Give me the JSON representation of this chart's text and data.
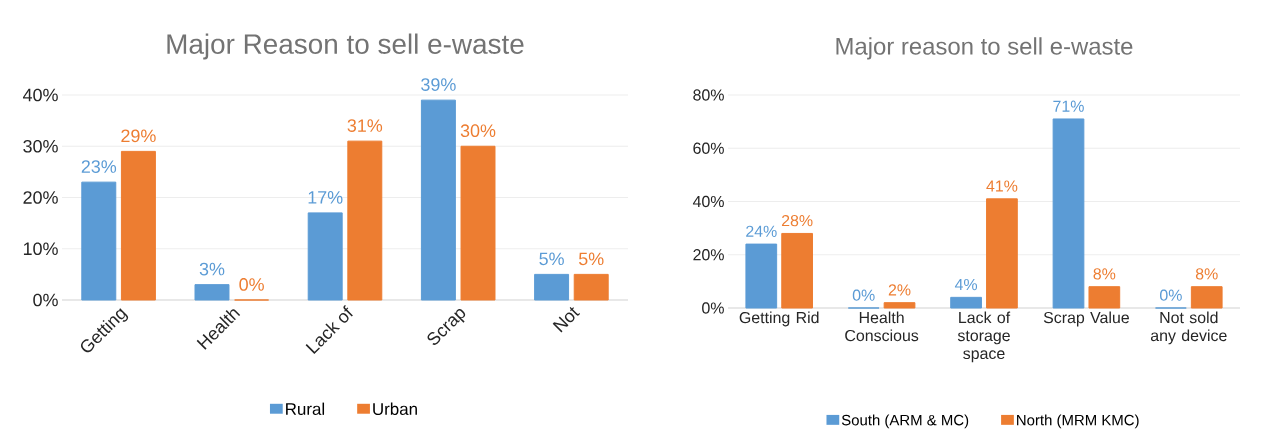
{
  "chart_data": [
    {
      "type": "bar",
      "title": "Major Reason to sell e-waste",
      "categories": [
        "Getting",
        "Health",
        "Lack of",
        "Scrap",
        "Not"
      ],
      "series": [
        {
          "name": "Rural",
          "color": "#5b9bd5",
          "values": [
            23,
            3,
            17,
            39,
            5
          ],
          "value_labels": [
            "23%",
            "3%",
            "17%",
            "39%",
            "5%"
          ]
        },
        {
          "name": "Urban",
          "color": "#ed7d31",
          "values": [
            29,
            0,
            31,
            30,
            5
          ],
          "value_labels": [
            "29%",
            "0%",
            "31%",
            "30%",
            "5%"
          ]
        }
      ],
      "ylim": [
        0,
        40
      ],
      "yticks": [
        {
          "value": 0,
          "label": "0%"
        },
        {
          "value": 10,
          "label": "10%"
        },
        {
          "value": 20,
          "label": "20%"
        },
        {
          "value": 30,
          "label": "30%"
        },
        {
          "value": 40,
          "label": "40%"
        }
      ],
      "grid": "y",
      "legend": "bottom"
    },
    {
      "type": "bar",
      "title": "Major reason to sell e-waste",
      "categories": [
        "Getting Rid",
        "Health Conscious",
        "Lack of storage space",
        "Scrap Value",
        "Not sold any device"
      ],
      "series": [
        {
          "name": "South (ARM & MC)",
          "color": "#5b9bd5",
          "values": [
            24,
            0,
            4,
            71,
            0
          ],
          "value_labels": [
            "24%",
            "0%",
            "4%",
            "71%",
            "0%"
          ]
        },
        {
          "name": "North (MRM  KMC)",
          "color": "#ed7d31",
          "values": [
            28,
            2,
            41,
            8,
            8
          ],
          "value_labels": [
            "28%",
            "2%",
            "41%",
            "8%",
            "8%"
          ]
        }
      ],
      "ylim": [
        0,
        80
      ],
      "yticks": [
        {
          "value": 0,
          "label": "0%"
        },
        {
          "value": 20,
          "label": "20%"
        },
        {
          "value": 40,
          "label": "40%"
        },
        {
          "value": 60,
          "label": "60%"
        },
        {
          "value": 80,
          "label": "80%"
        }
      ],
      "grid": "y",
      "legend": "bottom"
    }
  ]
}
